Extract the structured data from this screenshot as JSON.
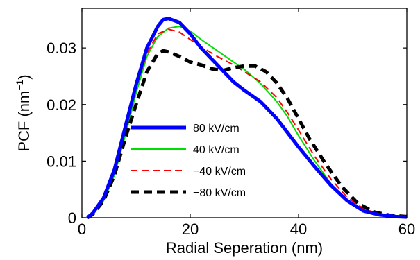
{
  "chart_data": {
    "type": "line",
    "title": "",
    "xlabel": "Radial Seperation (nm)",
    "ylabel_main": "PCF (nm",
    "ylabel_sup": "−1",
    "ylabel_close": ")",
    "xlim": [
      0,
      60
    ],
    "ylim": [
      0,
      0.037
    ],
    "x_ticks": [
      0,
      20,
      40,
      60
    ],
    "x_tick_labels": [
      "0",
      "20",
      "40",
      "60"
    ],
    "y_ticks": [
      0,
      0.01,
      0.02,
      0.03
    ],
    "y_tick_labels": [
      "0",
      "0.01",
      "0.02",
      "0.03"
    ],
    "grid": false,
    "legend_position": "center-left",
    "series": [
      {
        "name": "80 kV/cm",
        "color": "#0000ff",
        "dash": "solid",
        "weight": "heavy",
        "points": [
          [
            1,
            0.0
          ],
          [
            2,
            0.0008
          ],
          [
            4,
            0.0035
          ],
          [
            6,
            0.0085
          ],
          [
            8,
            0.016
          ],
          [
            10,
            0.0235
          ],
          [
            12,
            0.03
          ],
          [
            14,
            0.0338
          ],
          [
            15,
            0.035
          ],
          [
            16,
            0.0352
          ],
          [
            18,
            0.0345
          ],
          [
            20,
            0.0325
          ],
          [
            22,
            0.03
          ],
          [
            25,
            0.027
          ],
          [
            28,
            0.024
          ],
          [
            30,
            0.0225
          ],
          [
            33,
            0.0205
          ],
          [
            36,
            0.0175
          ],
          [
            38,
            0.015
          ],
          [
            40,
            0.0125
          ],
          [
            43,
            0.009
          ],
          [
            46,
            0.0057
          ],
          [
            49,
            0.003
          ],
          [
            52,
            0.0012
          ],
          [
            55,
            0.0005
          ],
          [
            58,
            0.0002
          ],
          [
            60,
            0.0001
          ]
        ]
      },
      {
        "name": "40 kV/cm",
        "color": "#00dd00",
        "dash": "solid",
        "weight": "thin",
        "points": [
          [
            1,
            0.0
          ],
          [
            2,
            0.0006
          ],
          [
            4,
            0.003
          ],
          [
            6,
            0.0075
          ],
          [
            8,
            0.0145
          ],
          [
            10,
            0.022
          ],
          [
            12,
            0.0285
          ],
          [
            14,
            0.032
          ],
          [
            16,
            0.0335
          ],
          [
            18,
            0.0338
          ],
          [
            20,
            0.033
          ],
          [
            22,
            0.0315
          ],
          [
            25,
            0.0295
          ],
          [
            28,
            0.0275
          ],
          [
            30,
            0.0262
          ],
          [
            33,
            0.0237
          ],
          [
            36,
            0.0205
          ],
          [
            38,
            0.0178
          ],
          [
            40,
            0.0145
          ],
          [
            43,
            0.01
          ],
          [
            46,
            0.006
          ],
          [
            49,
            0.003
          ],
          [
            52,
            0.0013
          ],
          [
            55,
            0.0005
          ],
          [
            58,
            0.0002
          ],
          [
            60,
            0.0001
          ]
        ]
      },
      {
        "name": "−40 kV/cm",
        "color": "#ff0000",
        "dash": "dashed",
        "weight": "thin",
        "points": [
          [
            1,
            0.0
          ],
          [
            2,
            0.0007
          ],
          [
            4,
            0.0032
          ],
          [
            6,
            0.008
          ],
          [
            8,
            0.0155
          ],
          [
            10,
            0.023
          ],
          [
            12,
            0.029
          ],
          [
            14,
            0.0325
          ],
          [
            16,
            0.0333
          ],
          [
            18,
            0.0328
          ],
          [
            20,
            0.0315
          ],
          [
            22,
            0.0302
          ],
          [
            25,
            0.0285
          ],
          [
            28,
            0.027
          ],
          [
            30,
            0.0258
          ],
          [
            33,
            0.024
          ],
          [
            36,
            0.0212
          ],
          [
            38,
            0.0185
          ],
          [
            40,
            0.0155
          ],
          [
            43,
            0.0108
          ],
          [
            46,
            0.0068
          ],
          [
            49,
            0.0036
          ],
          [
            52,
            0.0016
          ],
          [
            55,
            0.0006
          ],
          [
            58,
            0.0002
          ],
          [
            60,
            0.0001
          ]
        ]
      },
      {
        "name": "−80 kV/cm",
        "color": "#000000",
        "dash": "dashed",
        "weight": "heavy",
        "points": [
          [
            1,
            0.0
          ],
          [
            2,
            0.0006
          ],
          [
            4,
            0.003
          ],
          [
            6,
            0.0075
          ],
          [
            8,
            0.014
          ],
          [
            10,
            0.02
          ],
          [
            12,
            0.0258
          ],
          [
            14,
            0.029
          ],
          [
            15,
            0.0295
          ],
          [
            16,
            0.0293
          ],
          [
            18,
            0.0285
          ],
          [
            20,
            0.0275
          ],
          [
            22,
            0.027
          ],
          [
            24,
            0.0263
          ],
          [
            26,
            0.026
          ],
          [
            28,
            0.0265
          ],
          [
            30,
            0.0268
          ],
          [
            32,
            0.0268
          ],
          [
            34,
            0.0258
          ],
          [
            36,
            0.0238
          ],
          [
            38,
            0.021
          ],
          [
            40,
            0.0175
          ],
          [
            42,
            0.014
          ],
          [
            45,
            0.0095
          ],
          [
            48,
            0.0055
          ],
          [
            51,
            0.0025
          ],
          [
            54,
            0.001
          ],
          [
            57,
            0.0004
          ],
          [
            60,
            0.0002
          ]
        ]
      }
    ]
  }
}
